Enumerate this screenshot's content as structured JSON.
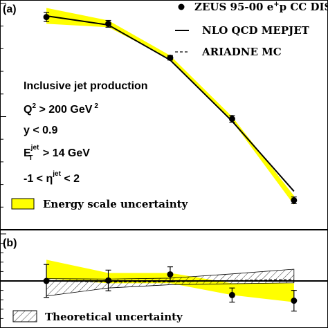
{
  "chart_data": [
    {
      "type": "line",
      "panel_label": "(a)",
      "x": [
        1,
        2,
        3,
        4,
        5
      ],
      "xlim": [
        0.25,
        5.55
      ],
      "ylim": [
        0,
        100
      ],
      "series": [
        {
          "name": "ZEUS 95-00 e+p CC DIS",
          "style": "points",
          "values": [
            94,
            91,
            76,
            49,
            13
          ],
          "errors": [
            2,
            1.5,
            1,
            1.5,
            1.5
          ]
        },
        {
          "name": "NLO QCD MEPJET",
          "style": "solid",
          "values": [
            94.5,
            90.5,
            75,
            48,
            17
          ]
        },
        {
          "name": "ARIADNE MC",
          "style": "dashed",
          "values": [
            94.5,
            90.5,
            75,
            48,
            17
          ]
        }
      ],
      "band": {
        "name": "Energy scale uncertainty",
        "color": "#ffff00",
        "lower": [
          91,
          89.5,
          75.5,
          48,
          11
        ],
        "upper": [
          98,
          92.5,
          77,
          50,
          15
        ]
      },
      "legend_keys": {
        "points": "ZEUS 95-00 e",
        "sup_plus": "+",
        "points_tail": "p CC DIS",
        "solid": "NLO QCD MEPJET",
        "dashed": "ARIADNE MC",
        "band": "Energy scale uncertainty"
      },
      "annotations": {
        "line1": "Inclusive jet production",
        "q2_base": "Q",
        "q2_sup": "2",
        "q2_rest": " > 200 GeV",
        "q2_unit_sup": "2",
        "y_cut": "y < 0.9",
        "et_base": "E",
        "et_sub": "T",
        "et_sup": "jet",
        "et_rest": " > 14 GeV",
        "eta_pre": "-1 < η",
        "eta_sup": "jet",
        "eta_post": " < 2"
      }
    },
    {
      "type": "line",
      "panel_label": "(b)",
      "x": [
        1,
        2,
        3,
        4,
        5
      ],
      "xlim": [
        0.25,
        5.55
      ],
      "ylim": [
        -1,
        1
      ],
      "reference_line": 0,
      "series": [
        {
          "name": "ZEUS 95-00 e+p CC DIS",
          "style": "points",
          "values": [
            0,
            0.01,
            0.14,
            -0.3,
            -0.42
          ],
          "errors": [
            0.35,
            0.22,
            0.16,
            0.15,
            0.22
          ]
        },
        {
          "name": "ARIADNE MC",
          "style": "dashed",
          "values": [
            0,
            -0.02,
            -0.02,
            0.01,
            0.03
          ]
        }
      ],
      "energy_band": {
        "color": "#ffff00",
        "lower": [
          0.05,
          -0.05,
          -0.05,
          -0.3,
          -0.45
        ],
        "upper": [
          0.45,
          0.17,
          0.17,
          -0.05,
          -0.05
        ]
      },
      "theory_band": {
        "name": "Theoretical uncertainty",
        "lower": [
          -0.32,
          -0.15,
          -0.08,
          -0.06,
          -0.04
        ],
        "upper": [
          0.05,
          0.04,
          0.06,
          0.15,
          0.25
        ]
      },
      "legend_key": "Theoretical uncertainty"
    }
  ]
}
